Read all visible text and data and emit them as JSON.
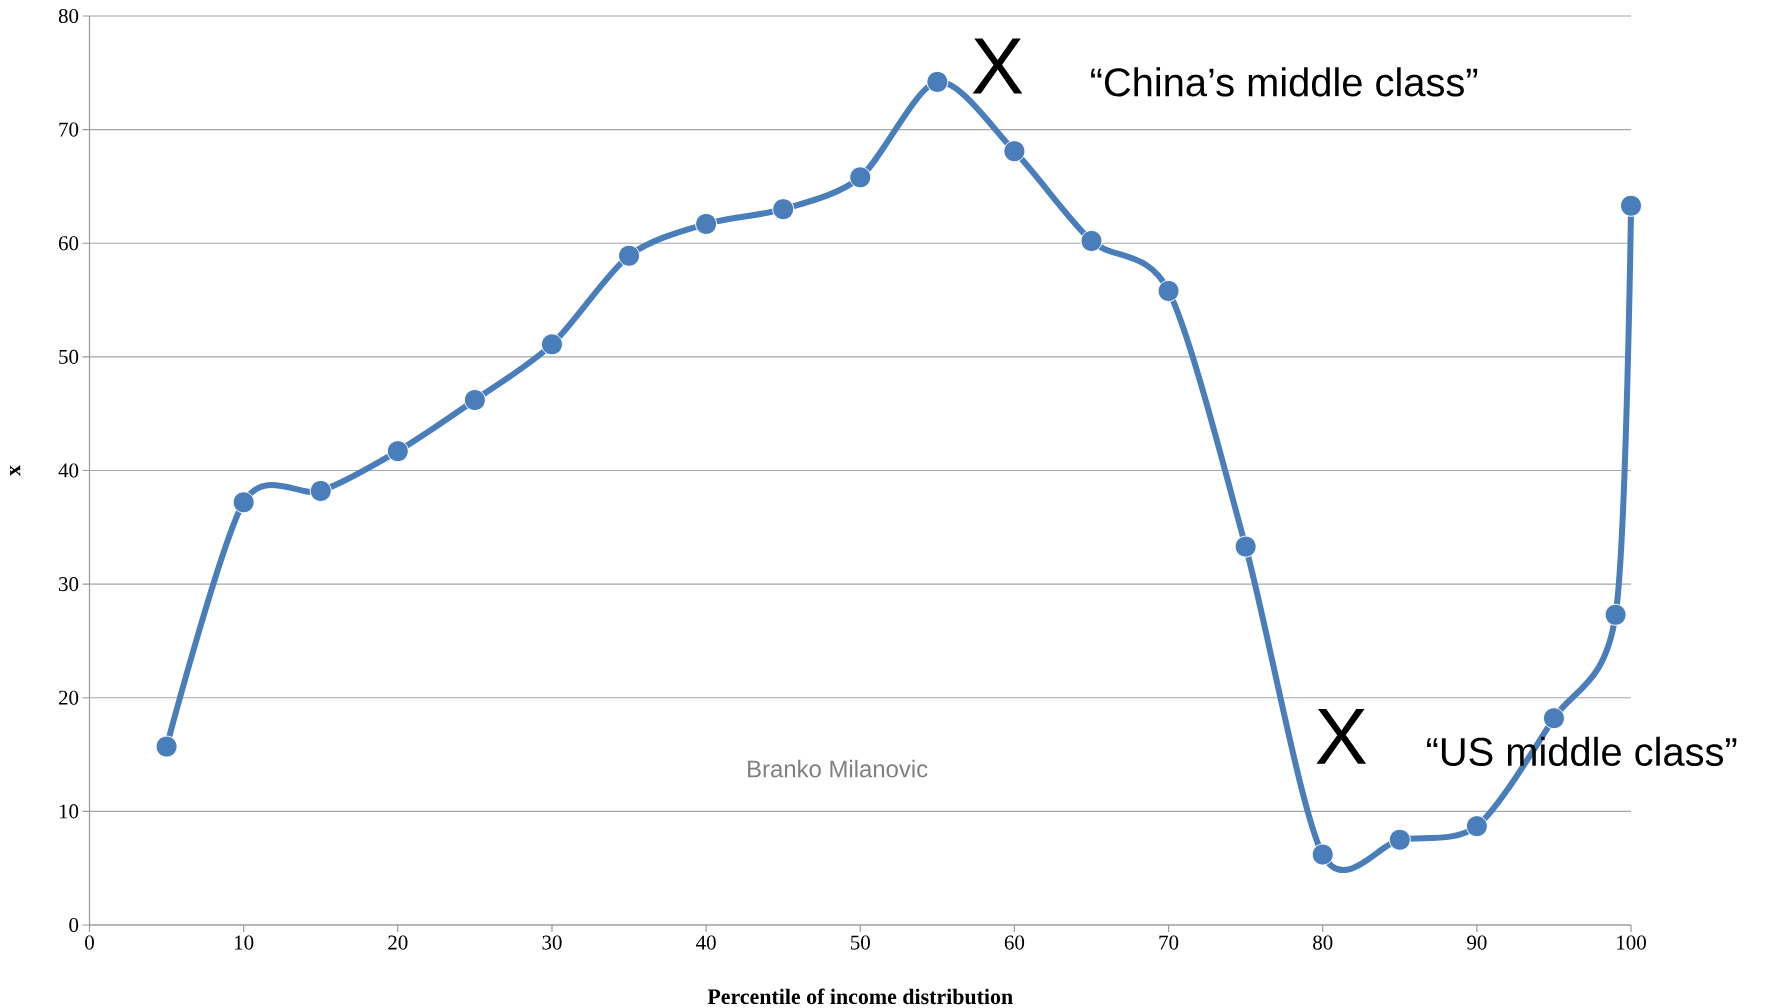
{
  "chart_data": {
    "type": "line",
    "xlabel": "Percentile of income distribution",
    "ylabel": "x",
    "x": [
      5,
      10,
      15,
      20,
      25,
      30,
      35,
      40,
      45,
      50,
      55,
      60,
      65,
      70,
      75,
      80,
      85,
      90,
      95,
      99,
      100
    ],
    "values": [
      15.7,
      37.2,
      38.2,
      41.7,
      46.2,
      51.1,
      58.9,
      61.7,
      63.0,
      65.8,
      74.2,
      68.1,
      60.2,
      55.8,
      33.3,
      6.2,
      7.5,
      8.7,
      18.2,
      27.3,
      63.3
    ],
    "color": "#4a7ebb",
    "marker": "circle",
    "grid": "y",
    "xlim": [
      0,
      100
    ],
    "ylim": [
      0,
      80
    ],
    "xticks": [
      0,
      10,
      20,
      30,
      40,
      50,
      60,
      70,
      80,
      90,
      100
    ],
    "yticks": [
      0,
      10,
      20,
      30,
      40,
      50,
      60,
      70,
      80
    ],
    "annotations": [
      "X",
      "“China’s middle class”",
      "X",
      "“US middle class”",
      "Branko Milanovic"
    ]
  }
}
